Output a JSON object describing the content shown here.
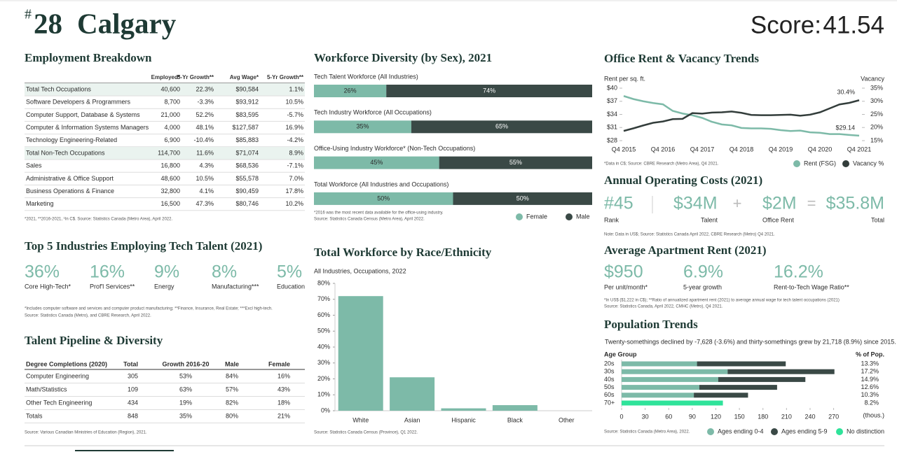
{
  "header": {
    "rank_symbol": "#",
    "rank": "28",
    "city": "Calgary",
    "score_label": "Score:",
    "score": "41.54"
  },
  "employment": {
    "title": "Employment Breakdown",
    "columns": [
      "Employed*",
      "5-Yr Growth**",
      "Avg Wage*",
      "5-Yr Growth**"
    ],
    "rows": [
      [
        "Total Tech Occupations",
        "40,600",
        "22.3%",
        "$90,584",
        "1.1%"
      ],
      [
        "Software Developers & Programmers",
        "8,700",
        "-3.3%",
        "$93,912",
        "10.5%"
      ],
      [
        "Computer Support, Database & Systems",
        "21,000",
        "52.2%",
        "$83,595",
        "-5.7%"
      ],
      [
        "Computer & Information Systems Managers",
        "4,000",
        "48.1%",
        "$127,587",
        "16.9%"
      ],
      [
        "Technology Engineering-Related",
        "6,900",
        "-10.4%",
        "$85,883",
        "-4.2%"
      ],
      [
        "Total Non-Tech Occupations",
        "114,700",
        "11.6%",
        "$71,074",
        "8.9%"
      ],
      [
        "Sales",
        "16,800",
        "4.3%",
        "$68,536",
        "-7.1%"
      ],
      [
        "Administrative & Office Support",
        "48,600",
        "10.5%",
        "$55,578",
        "7.0%"
      ],
      [
        "Business Operations & Finance",
        "32,800",
        "4.1%",
        "$90,459",
        "17.8%"
      ],
      [
        "Marketing",
        "16,500",
        "47.3%",
        "$80,746",
        "10.2%"
      ]
    ],
    "note": "*2021, **2016-2021, ¹In C$. Source: Statistics Canada (Metro Area), April 2022."
  },
  "top_industries": {
    "title": "Top 5 Industries Employing Tech Talent (2021)",
    "items": [
      {
        "value": "36%",
        "label": "Core High-Tech*"
      },
      {
        "value": "16%",
        "label": "Prof'l Services**"
      },
      {
        "value": "9%",
        "label": "Energy"
      },
      {
        "value": "8%",
        "label": "Manufacturing***"
      },
      {
        "value": "5%",
        "label": "Education"
      }
    ],
    "notes": [
      "*Includes computer software and services and computer product manufacturing; **Finance, Insurance, Real Estate; ***Excl high-tech.",
      "Source: Statistics Canada (Metro), and CBRE Research, April 2022."
    ]
  },
  "talent": {
    "title": "Talent Pipeline & Diversity",
    "columns": [
      "Degree Completions (2020)",
      "Total",
      "Growth 2016-20",
      "Male",
      "Female"
    ],
    "rows": [
      [
        "Computer Engineering",
        "305",
        "53%",
        "84%",
        "16%"
      ],
      [
        "Math/Statistics",
        "109",
        "63%",
        "57%",
        "43%"
      ],
      [
        "Other Tech Engineering",
        "434",
        "19%",
        "82%",
        "18%"
      ],
      [
        "Totals",
        "848",
        "35%",
        "80%",
        "21%"
      ]
    ],
    "note": "Source: Various Canadian Ministries of Education (Region), 2021."
  },
  "operating_costs": {
    "title": "Annual Operating Costs (2021)",
    "items": [
      {
        "value": "#45",
        "label": "Rank"
      },
      {
        "value": "$34M",
        "label": "Talent"
      },
      {
        "value": "$2M",
        "label": "Office Rent"
      },
      {
        "value": "$35.8M",
        "label": "Total"
      }
    ],
    "operators": [
      "+",
      "="
    ],
    "note": "Note: Data in US$; Source: Statistics Canada April 2022, CBRE Research (Metro) Q4 2021."
  },
  "apartment_rent": {
    "title": "Average Apartment Rent (2021)",
    "items": [
      {
        "value": "$950",
        "label": "Per unit/month*"
      },
      {
        "value": "6.9%",
        "label": "5-year growth"
      },
      {
        "value": "16.2%",
        "label": "Rent-to-Tech Wage Ratio**"
      }
    ],
    "notes": [
      "*In US$ ($1,222 in C$); **Ratio of annualized apartment rent (2021) to average annual wage for tech talent occupations (2021)",
      "Source: Statistics Canada, April 2022, CMHC (Metro), Q4 2021."
    ]
  },
  "chart_data": [
    {
      "type": "stacked-hbar",
      "title": "Workforce Diversity (by Sex), 2021",
      "categories": [
        "Tech Talent Workforce (All Industries)",
        "Tech Industry Workforce (All Occupations)",
        "Office-Using Industry Workforce* (Non-Tech Occupations)",
        "Total Workforce (All Industries and Occupations)"
      ],
      "series": [
        {
          "name": "Female",
          "color": "#7dbaa8",
          "values": [
            26,
            35,
            45,
            50
          ],
          "value_labels": [
            "26%",
            "35%",
            "45%",
            "50%"
          ]
        },
        {
          "name": "Male",
          "color": "#3a4946",
          "values": [
            74,
            65,
            55,
            50
          ],
          "value_labels": [
            "74%",
            "65%",
            "55%",
            "50%"
          ]
        }
      ],
      "xlim": [
        0,
        100
      ],
      "notes": [
        "*2016 was the most recent data available for the office-using industry.",
        "Source: Statistics Canada Census (Metro Area), April 2022."
      ]
    },
    {
      "type": "bar",
      "title": "Total Workforce by Race/Ethnicity",
      "subtitle": "All Industries, Occupations, 2022",
      "categories": [
        "White",
        "Asian",
        "Hispanic",
        "Black",
        "Other"
      ],
      "values": [
        72,
        21,
        1.5,
        3.5,
        0
      ],
      "color": "#7dbaa8",
      "ylim": [
        0,
        80
      ],
      "yticks": [
        {
          "value": 0,
          "label": "0%"
        },
        {
          "value": 10,
          "label": "10%"
        },
        {
          "value": 20,
          "label": "20%"
        },
        {
          "value": 30,
          "label": "30%"
        },
        {
          "value": 40,
          "label": "40%"
        },
        {
          "value": 50,
          "label": "50%"
        },
        {
          "value": 60,
          "label": "60%"
        },
        {
          "value": 70,
          "label": "70%"
        },
        {
          "value": 80,
          "label": "80%"
        }
      ],
      "note": "Source: Statistics Canada Census (Province), Q1 2022."
    },
    {
      "type": "line",
      "title": "Office Rent & Vacancy Trends",
      "y_label": "Rent per sq. ft.",
      "y2_label": "Vacancy",
      "categories": [
        "Q4 2015",
        null,
        null,
        null,
        "Q4 2016",
        null,
        null,
        null,
        "Q4 2017",
        null,
        null,
        null,
        "Q4 2018",
        null,
        null,
        null,
        "Q4 2019",
        null,
        null,
        null,
        "Q4 2020",
        null,
        null,
        null,
        "Q4 2021"
      ],
      "series": [
        {
          "name": "Rent (FSG)",
          "color": "#7dbaa8",
          "values": [
            38.2,
            37.5,
            37,
            36.6,
            36.3,
            34.8,
            34.2,
            33.8,
            33.2,
            32.3,
            31.7,
            31.5,
            30.9,
            30.8,
            30.8,
            30.7,
            30.4,
            30.2,
            30.3,
            29.9,
            29.8,
            29.5,
            29.5,
            29.3,
            29.14
          ],
          "value_labels": [
            null,
            null,
            null,
            null,
            null,
            null,
            null,
            null,
            null,
            null,
            null,
            null,
            null,
            null,
            null,
            null,
            null,
            null,
            null,
            null,
            null,
            null,
            null,
            null,
            "$29.14"
          ]
        },
        {
          "name": "Vacancy %",
          "color": "#333d3b",
          "axis": "y2",
          "values": [
            18.7,
            19.7,
            20.8,
            21.8,
            22.3,
            23.2,
            23.3,
            25.5,
            25.3,
            25.7,
            25.8,
            26.1,
            25.6,
            24.8,
            24.7,
            24.7,
            24.8,
            24.9,
            24.5,
            24.9,
            25.8,
            27.3,
            28.8,
            29.4,
            30.4
          ],
          "value_labels": [
            null,
            null,
            null,
            null,
            null,
            null,
            null,
            null,
            null,
            null,
            null,
            null,
            null,
            null,
            null,
            null,
            null,
            null,
            null,
            null,
            null,
            null,
            null,
            null,
            "30.4%"
          ]
        }
      ],
      "ylim": [
        28,
        40
      ],
      "yticks": [
        {
          "value": 28,
          "label": "$28"
        },
        {
          "value": 31,
          "label": "$31"
        },
        {
          "value": 34,
          "label": "$34"
        },
        {
          "value": 37,
          "label": "$37"
        },
        {
          "value": 40,
          "label": "$40"
        }
      ],
      "y2lim": [
        15,
        35
      ],
      "y2ticks": [
        {
          "value": 15,
          "label": "15%"
        },
        {
          "value": 20,
          "label": "20%"
        },
        {
          "value": 25,
          "label": "25%"
        },
        {
          "value": 30,
          "label": "30%"
        },
        {
          "value": 35,
          "label": "35%"
        }
      ],
      "note": "*Data in C$; Source: CBRE Research (Metro Area), Q4 2021."
    },
    {
      "type": "stacked-hbar",
      "title": "Population Trends",
      "subtitle": "Twenty-somethings declined by -7,628 (-3.6%) and thirty-somethings grew by 21,718 (8.9%) since 2015.",
      "y_label": "Age Group",
      "share_label": "% of Pop.",
      "x_label": "(thous.)",
      "categories": [
        "20s",
        "30s",
        "40s",
        "50s",
        "60s",
        "70+"
      ],
      "shares": [
        "13.3%",
        "17.2%",
        "14.9%",
        "12.6%",
        "10.3%",
        "8.2%"
      ],
      "series": [
        {
          "name": "Ages ending 0-4",
          "color": "#7dbaa8",
          "values": [
            96,
            135,
            123,
            99,
            92,
            null
          ]
        },
        {
          "name": "Ages ending 5-9",
          "color": "#3a4946",
          "values": [
            113,
            136,
            111,
            99,
            69,
            null
          ]
        },
        {
          "name": "No distinction",
          "color": "#2fe39a",
          "values": [
            null,
            null,
            null,
            null,
            null,
            129
          ]
        }
      ],
      "xlim": [
        0,
        290
      ],
      "xticks": [
        0,
        30,
        60,
        90,
        120,
        150,
        180,
        210,
        240,
        270
      ],
      "note": "Source: Statistics Canada (Metro Area), 2022."
    }
  ]
}
